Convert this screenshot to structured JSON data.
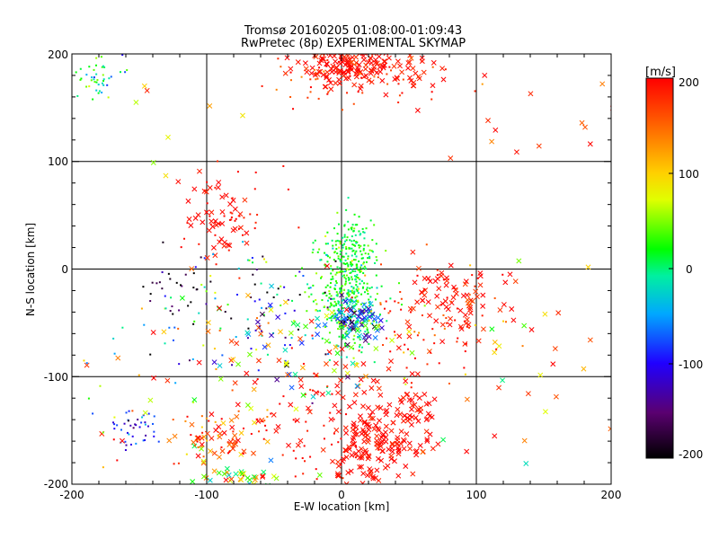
{
  "chart_data": {
    "type": "scatter",
    "title": "Tromsø 20160205 01:08:00-01:09:43",
    "subtitle": "RwPretec (8p) EXPERIMENTAL SKYMAP",
    "xlabel": "E-W location [km]",
    "ylabel": "N-S location [km]",
    "xlim": [
      -200,
      200
    ],
    "ylim": [
      -200,
      200
    ],
    "x_ticks": [
      "-200",
      "-100",
      "0",
      "100",
      "200"
    ],
    "y_ticks": [
      "-200",
      "-100",
      "0",
      "100",
      "200"
    ],
    "grid": true,
    "colorbar": {
      "label": "[m/s]",
      "range": [
        -200,
        200
      ],
      "ticks": [
        "200",
        "100",
        "0",
        "-100",
        "-200"
      ],
      "palette": [
        "#000000",
        "#5a0070",
        "#2000ff",
        "#00a8ff",
        "#00f0a0",
        "#00ff00",
        "#e0ff00",
        "#ffd000",
        "#ff6000",
        "#ff0000"
      ]
    },
    "markers": [
      "x",
      "dot"
    ],
    "clusters": [
      {
        "cx": 5,
        "cy": -25,
        "sx": 12,
        "sy": 28,
        "v": 20,
        "vs": 25,
        "n": 380,
        "m": "dot"
      },
      {
        "cx": 12,
        "cy": -45,
        "sx": 8,
        "sy": 10,
        "v": -90,
        "vs": 50,
        "n": 60,
        "m": "x"
      },
      {
        "cx": 8,
        "cy": 15,
        "sx": 8,
        "sy": 18,
        "v": 15,
        "vs": 15,
        "n": 110,
        "m": "dot"
      },
      {
        "cx": 5,
        "cy": 190,
        "sx": 20,
        "sy": 10,
        "v": 195,
        "vs": 10,
        "n": 150,
        "m": "x"
      },
      {
        "cx": -5,
        "cy": 175,
        "sx": 35,
        "sy": 15,
        "v": 180,
        "vs": 30,
        "n": 60,
        "m": "dot"
      },
      {
        "cx": 50,
        "cy": 180,
        "sx": 18,
        "sy": 8,
        "v": 190,
        "vs": 15,
        "n": 25,
        "m": "x"
      },
      {
        "cx": -180,
        "cy": 178,
        "sx": 8,
        "sy": 10,
        "v": 10,
        "vs": 45,
        "n": 45,
        "m": "dot"
      },
      {
        "cx": -90,
        "cy": 45,
        "sx": 12,
        "sy": 20,
        "v": 195,
        "vs": 8,
        "n": 45,
        "m": "x"
      },
      {
        "cx": -85,
        "cy": 50,
        "sx": 18,
        "sy": 22,
        "v": 195,
        "vs": 8,
        "n": 40,
        "m": "dot"
      },
      {
        "cx": 80,
        "cy": -30,
        "sx": 18,
        "sy": 18,
        "v": 190,
        "vs": 15,
        "n": 80,
        "m": "x"
      },
      {
        "cx": 70,
        "cy": -40,
        "sx": 25,
        "sy": 25,
        "v": 185,
        "vs": 25,
        "n": 50,
        "m": "dot"
      },
      {
        "cx": 40,
        "cy": -150,
        "sx": 18,
        "sy": 22,
        "v": 195,
        "vs": 10,
        "n": 130,
        "m": "x"
      },
      {
        "cx": 15,
        "cy": -175,
        "sx": 12,
        "sy": 20,
        "v": 195,
        "vs": 8,
        "n": 60,
        "m": "x"
      },
      {
        "cx": 10,
        "cy": -120,
        "sx": 30,
        "sy": 30,
        "v": 195,
        "vs": 10,
        "n": 60,
        "m": "x"
      },
      {
        "cx": -20,
        "cy": -150,
        "sx": 20,
        "sy": 35,
        "v": 195,
        "vs": 10,
        "n": 50,
        "m": "dot"
      },
      {
        "cx": -90,
        "cy": -160,
        "sx": 15,
        "sy": 10,
        "v": 170,
        "vs": 40,
        "n": 40,
        "m": "x"
      },
      {
        "cx": -90,
        "cy": -155,
        "sx": 20,
        "sy": 20,
        "v": 170,
        "vs": 40,
        "n": 40,
        "m": "dot"
      },
      {
        "cx": -75,
        "cy": -193,
        "sx": 15,
        "sy": 5,
        "v": 80,
        "vs": 60,
        "n": 35,
        "m": "x"
      },
      {
        "cx": -153,
        "cy": -150,
        "sx": 8,
        "sy": 10,
        "v": -100,
        "vs": 30,
        "n": 40,
        "m": "dot"
      },
      {
        "cx": -120,
        "cy": -20,
        "sx": 15,
        "sy": 15,
        "v": -200,
        "vs": 30,
        "n": 25,
        "m": "dot"
      },
      {
        "cx": -60,
        "cy": -30,
        "sx": 35,
        "sy": 25,
        "v": -40,
        "vs": 100,
        "n": 80,
        "m": "dot"
      },
      {
        "cx": -60,
        "cy": -70,
        "sx": 35,
        "sy": 30,
        "v": 0,
        "vs": 120,
        "n": 40,
        "m": "x"
      },
      {
        "cx": -100,
        "cy": -60,
        "sx": 50,
        "sy": 35,
        "v": -100,
        "vs": 120,
        "n": 40,
        "m": "dot"
      },
      {
        "cx": 60,
        "cy": -60,
        "sx": 30,
        "sy": 25,
        "v": 150,
        "vs": 60,
        "n": 40,
        "m": "dot"
      },
      {
        "cx": 140,
        "cy": -60,
        "sx": 40,
        "sy": 30,
        "v": 150,
        "vs": 80,
        "n": 20,
        "m": "x"
      },
      {
        "cx": 130,
        "cy": 150,
        "sx": 40,
        "sy": 30,
        "v": 180,
        "vs": 40,
        "n": 15,
        "m": "x"
      },
      {
        "cx": -150,
        "cy": 120,
        "sx": 40,
        "sy": 30,
        "v": 140,
        "vs": 60,
        "n": 10,
        "m": "x"
      },
      {
        "cx": -120,
        "cy": -120,
        "sx": 40,
        "sy": 30,
        "v": 150,
        "vs": 70,
        "n": 20,
        "m": "x"
      },
      {
        "cx": 120,
        "cy": -160,
        "sx": 40,
        "sy": 30,
        "v": 150,
        "vs": 100,
        "n": 15,
        "m": "x"
      },
      {
        "cx": -150,
        "cy": -120,
        "sx": 40,
        "sy": 50,
        "v": 100,
        "vs": 100,
        "n": 20,
        "m": "dot"
      },
      {
        "cx": -20,
        "cy": -80,
        "sx": 40,
        "sy": 25,
        "v": 60,
        "vs": 80,
        "n": 50,
        "m": "x"
      }
    ]
  }
}
